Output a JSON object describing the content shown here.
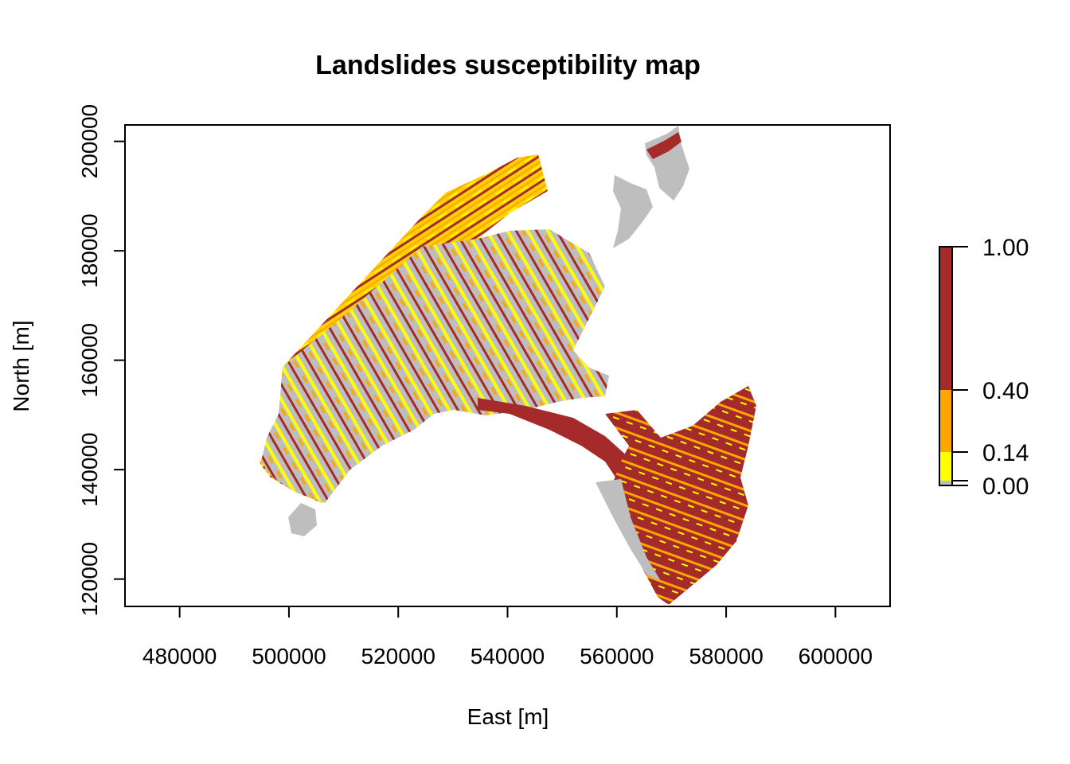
{
  "title": "Landslides susceptibility map",
  "xlabel": "East [m]",
  "ylabel": "North [m]",
  "xticks": [
    "480000",
    "500000",
    "520000",
    "540000",
    "560000",
    "580000",
    "600000"
  ],
  "yticks": [
    "120000",
    "140000",
    "160000",
    "180000",
    "200000"
  ],
  "legend": {
    "breaks": [
      0.0,
      0.02,
      0.14,
      0.4,
      1.0
    ],
    "labels": [
      "1.00",
      "0.40",
      "0.14",
      "0.00"
    ],
    "classes": [
      {
        "from": 0.0,
        "to": 0.02,
        "color": "#BEBEBE"
      },
      {
        "from": 0.02,
        "to": 0.14,
        "color": "#FFFF00"
      },
      {
        "from": 0.14,
        "to": 0.4,
        "color": "#FFA500"
      },
      {
        "from": 0.4,
        "to": 1.0,
        "color": "#A52A2A"
      }
    ]
  },
  "chart_data": {
    "type": "heatmap",
    "title": "Landslides susceptibility map",
    "xlabel": "East [m]",
    "ylabel": "North [m]",
    "xlim": [
      470000,
      610000
    ],
    "ylim": [
      115000,
      203000
    ],
    "legend_position": "right"
  },
  "colors": {
    "background": "#FFFFFF",
    "axis": "#000000",
    "low": "#BEBEBE",
    "moderate": "#FFFF00",
    "high": "#FFA500",
    "very_high": "#A52A2A"
  }
}
